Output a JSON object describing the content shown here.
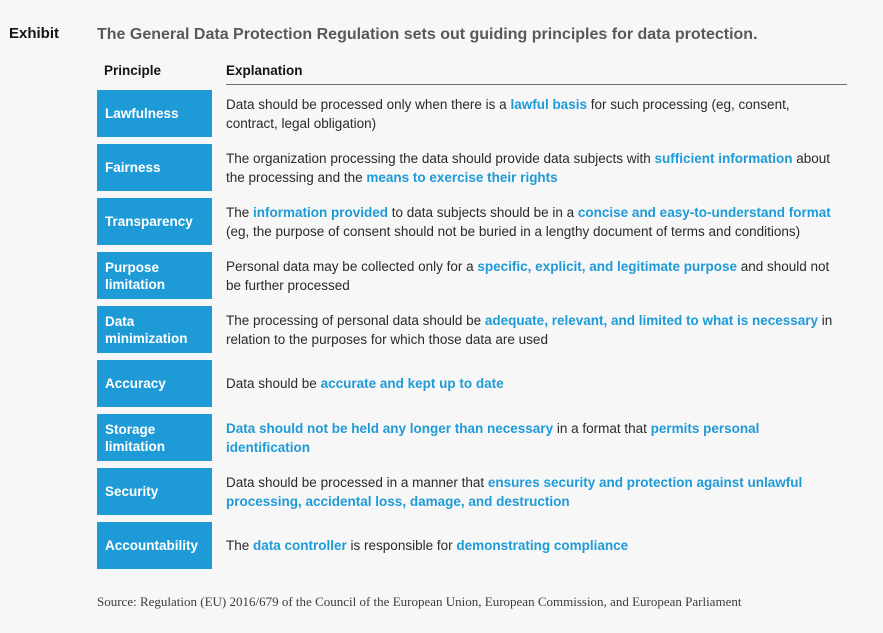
{
  "exhibit_label": "Exhibit",
  "title": "The General Data Protection Regulation sets out guiding principles for data protection.",
  "colors": {
    "accent_blue": "#1e9bd7",
    "title_gray": "#58595b",
    "background": "#f7f7f8",
    "header_rule": "#6d6e71"
  },
  "table": {
    "columns": [
      "Principle",
      "Explanation"
    ],
    "rows": [
      {
        "principle": "Lawfulness",
        "explanation_segments": [
          {
            "text": "Data should be processed only when there is a ",
            "highlight": false
          },
          {
            "text": "lawful basis",
            "highlight": true
          },
          {
            "text": " for such processing (eg, consent, contract, legal obligation)",
            "highlight": false
          }
        ]
      },
      {
        "principle": "Fairness",
        "explanation_segments": [
          {
            "text": "The organization processing the data should provide data subjects with ",
            "highlight": false
          },
          {
            "text": "sufficient information",
            "highlight": true
          },
          {
            "text": " about the processing and the ",
            "highlight": false
          },
          {
            "text": "means to exercise their rights",
            "highlight": true
          }
        ]
      },
      {
        "principle": "Transparency",
        "explanation_segments": [
          {
            "text": "The ",
            "highlight": false
          },
          {
            "text": "information provided",
            "highlight": true
          },
          {
            "text": " to data subjects should be in a ",
            "highlight": false
          },
          {
            "text": "concise and easy-to-understand format",
            "highlight": true
          },
          {
            "text": " (eg, the purpose of consent should not be buried in a lengthy document of terms and conditions)",
            "highlight": false
          }
        ]
      },
      {
        "principle": "Purpose limitation",
        "explanation_segments": [
          {
            "text": "Personal data may be collected only for a ",
            "highlight": false
          },
          {
            "text": "specific, explicit, and legitimate purpose",
            "highlight": true
          },
          {
            "text": " and should not be further processed",
            "highlight": false
          }
        ]
      },
      {
        "principle": "Data minimization",
        "explanation_segments": [
          {
            "text": "The processing of personal data should be ",
            "highlight": false
          },
          {
            "text": "adequate, relevant, and limited to what is necessary",
            "highlight": true
          },
          {
            "text": " in relation to the purposes for which those data are used",
            "highlight": false
          }
        ]
      },
      {
        "principle": "Accuracy",
        "explanation_segments": [
          {
            "text": "Data should be ",
            "highlight": false
          },
          {
            "text": "accurate and kept up to date",
            "highlight": true
          }
        ]
      },
      {
        "principle": "Storage limitation",
        "explanation_segments": [
          {
            "text": "Data should not be held any longer than necessary",
            "highlight": true
          },
          {
            "text": " in a format that ",
            "highlight": false
          },
          {
            "text": "permits personal identification",
            "highlight": true
          }
        ]
      },
      {
        "principle": "Security",
        "explanation_segments": [
          {
            "text": "Data should be processed in a manner that ",
            "highlight": false
          },
          {
            "text": "ensures security and protection against unlawful processing, accidental loss, damage, and destruction",
            "highlight": true
          }
        ]
      },
      {
        "principle": "Accountability",
        "explanation_segments": [
          {
            "text": "The ",
            "highlight": false
          },
          {
            "text": "data controller",
            "highlight": true
          },
          {
            "text": " is responsible for ",
            "highlight": false
          },
          {
            "text": "demonstrating compliance",
            "highlight": true
          }
        ]
      }
    ]
  },
  "source": "Source: Regulation (EU) 2016/679 of the Council of the European Union, European Commission, and European Parliament"
}
